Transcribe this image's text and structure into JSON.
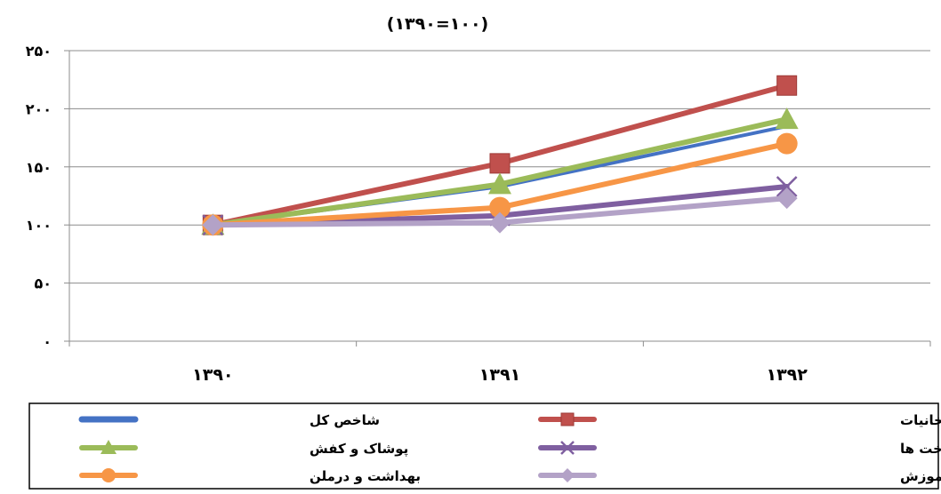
{
  "chart_data": {
    "type": "line",
    "title": "(۱۳۹۰=۱۰۰)",
    "categories": [
      "۱۳۹۰",
      "۱۳۹۱",
      "۱۳۹۲"
    ],
    "y_tick_labels": [
      "۰",
      "۵۰",
      "۱۰۰",
      "۱۵۰",
      "۲۰۰",
      "۲۵۰"
    ],
    "ylim": [
      0,
      250
    ],
    "y_ticks": [
      0,
      50,
      100,
      150,
      200,
      250
    ],
    "grid": true,
    "legend_position": "bottom",
    "series": [
      {
        "name": "شاخص کل",
        "values": [
          100,
          133,
          185
        ],
        "color": "#4472C4",
        "marker": "none"
      },
      {
        "name": "خوراکیها آشامیدنی و دخانیات",
        "values": [
          100,
          153,
          220
        ],
        "color": "#C0504D",
        "marker": "square"
      },
      {
        "name": "پوشاک و کفش",
        "values": [
          100,
          135,
          191
        ],
        "color": "#9BBB59",
        "marker": "triangle"
      },
      {
        "name": "مسکن ، آب ، برق ، گاز و سایر سوخت ها",
        "values": [
          100,
          108,
          133
        ],
        "color": "#7F5FA0",
        "marker": "x"
      },
      {
        "name": "بهداشت و درملن",
        "values": [
          100,
          115,
          170
        ],
        "color": "#F79646",
        "marker": "circle"
      },
      {
        "name": "آموزش",
        "values": [
          100,
          102,
          123
        ],
        "color": "#B3A2C7",
        "marker": "diamond"
      }
    ]
  }
}
